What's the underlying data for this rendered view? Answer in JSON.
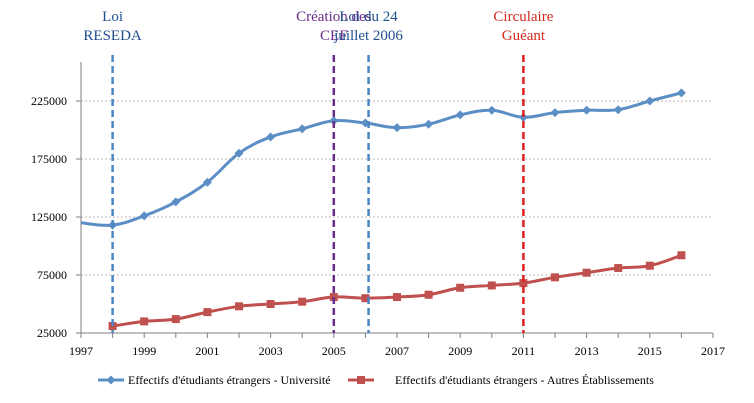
{
  "chart_data": {
    "type": "line",
    "xlim": [
      1997,
      2017
    ],
    "ylim": [
      25000,
      245000
    ],
    "x_ticks": [
      1997,
      1999,
      2001,
      2003,
      2005,
      2007,
      2009,
      2011,
      2013,
      2015,
      2017
    ],
    "y_ticks": [
      25000,
      75000,
      125000,
      175000,
      225000
    ],
    "grid": "horizontal-dashed",
    "legend_position": "bottom",
    "series": [
      {
        "name": "Effectifs d'étudiants étrangers - Université",
        "color": "#5b8ec5",
        "marker": "diamond",
        "x": [
          1998,
          1999,
          2000,
          2001,
          2002,
          2003,
          2004,
          2005,
          2006,
          2007,
          2008,
          2009,
          2010,
          2011,
          2012,
          2013,
          2014,
          2015,
          2016
        ],
        "y": [
          118000,
          126000,
          138000,
          155000,
          180000,
          194000,
          201000,
          208000,
          206000,
          202000,
          205000,
          213000,
          217000,
          211000,
          215000,
          217000,
          217500,
          225000,
          232000
        ]
      },
      {
        "name": "Effectifs d'étudiants étrangers - Autres Établissements",
        "color": "#c0504d",
        "marker": "square",
        "x": [
          1998,
          1999,
          2000,
          2001,
          2002,
          2003,
          2004,
          2005,
          2006,
          2007,
          2008,
          2009,
          2010,
          2011,
          2012,
          2013,
          2014,
          2015,
          2016
        ],
        "y": [
          31000,
          35000,
          37000,
          43000,
          48000,
          50000,
          52000,
          56000,
          55000,
          56000,
          58000,
          64000,
          66000,
          68000,
          73000,
          77000,
          81000,
          83000,
          92000
        ]
      }
    ],
    "leading_segment": {
      "x": 1997,
      "y": 120000
    },
    "annotations": [
      {
        "year": 1998,
        "lines": [
          "Loi",
          "RESEDA"
        ],
        "color": "#1f4e8c",
        "line_color": "#4a86c2",
        "dash": "blue"
      },
      {
        "year": 2005,
        "lines": [
          "Création des",
          "CEF"
        ],
        "color": "#6a2c8a",
        "line_color": "#6a2c8a",
        "dash": "purple"
      },
      {
        "year": 2006.1,
        "lines": [
          "Loi du 24",
          "juillet 2006"
        ],
        "color": "#1f4e8c",
        "line_color": "#4a86c2",
        "dash": "blue"
      },
      {
        "year": 2011,
        "lines": [
          "Circulaire",
          "Guéant"
        ],
        "color": "#d42a20",
        "line_color": "#e02020",
        "dash": "red"
      }
    ]
  }
}
